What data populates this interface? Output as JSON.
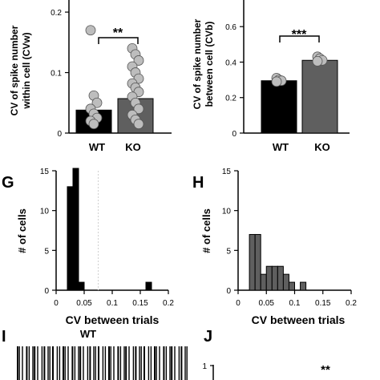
{
  "colors": {
    "wt": "#000000",
    "ko": "#5f5f5f",
    "dot": "#bdbdbd",
    "raster": "#000000"
  },
  "chart_data": [
    {
      "panel": "top-left",
      "type": "bar",
      "ylabel_lines": [
        "CV of spike number",
        "within cell (CVw)"
      ],
      "categories": [
        "WT",
        "KO"
      ],
      "values": [
        0.038,
        0.057
      ],
      "ylim": [
        0,
        0.22
      ],
      "yticks": [
        0,
        0.1,
        0.2
      ],
      "ytick_labels": [
        "0",
        "0.1",
        "0.2"
      ],
      "significance": "**",
      "points": {
        "WT": [
          0.17,
          0.062,
          0.05,
          0.04,
          0.032,
          0.025,
          0.02,
          0.015
        ],
        "KO": [
          0.14,
          0.13,
          0.12,
          0.11,
          0.1,
          0.09,
          0.082,
          0.075,
          0.068,
          0.06,
          0.05,
          0.04,
          0.03,
          0.022,
          0.015
        ]
      }
    },
    {
      "panel": "top-right",
      "type": "bar",
      "ylabel_lines": [
        "CV of spike number",
        "between cell (CVb)"
      ],
      "categories": [
        "WT",
        "KO"
      ],
      "values": [
        0.295,
        0.41
      ],
      "ylim": [
        0,
        0.75
      ],
      "yticks": [
        0,
        0.2,
        0.4,
        0.6
      ],
      "ytick_labels": [
        "0",
        "0.2",
        "0.4",
        "0.6"
      ],
      "significance": "***",
      "points": {
        "WT": [
          0.31,
          0.3,
          0.295,
          0.29
        ],
        "KO": [
          0.43,
          0.42,
          0.41,
          0.405
        ]
      }
    },
    {
      "panel": "G",
      "label": "G",
      "type": "bar",
      "subtype": "histogram",
      "xlabel": "CV between trials",
      "ylabel": "# of cells",
      "xlim": [
        0,
        0.2
      ],
      "ylim": [
        0,
        15
      ],
      "xticks": [
        0,
        0.05,
        0.1,
        0.15,
        0.2
      ],
      "xtick_labels": [
        "0",
        "0.05",
        "0.1",
        "0.15",
        "0.2"
      ],
      "yticks": [
        0,
        5,
        10,
        15
      ],
      "ytick_labels": [
        "0",
        "5",
        "10",
        "15"
      ],
      "bin_width": 0.01,
      "bins": [
        {
          "start": 0.02,
          "count": 13
        },
        {
          "start": 0.03,
          "count": 15.3
        },
        {
          "start": 0.04,
          "count": 1
        },
        {
          "start": 0.16,
          "count": 1
        }
      ],
      "dashed_at": 0.075
    },
    {
      "panel": "H",
      "label": "H",
      "type": "bar",
      "subtype": "histogram",
      "xlabel": "CV between trials",
      "ylabel": "# of cells",
      "xlim": [
        0,
        0.2
      ],
      "ylim": [
        0,
        15
      ],
      "xticks": [
        0,
        0.05,
        0.1,
        0.15,
        0.2
      ],
      "xtick_labels": [
        "0",
        "0.05",
        "0.1",
        "0.15",
        "0.2"
      ],
      "yticks": [
        0,
        5,
        10,
        15
      ],
      "ytick_labels": [
        "0",
        "5",
        "10",
        "15"
      ],
      "bin_width": 0.01,
      "bins": [
        {
          "start": 0.02,
          "count": 7
        },
        {
          "start": 0.03,
          "count": 7
        },
        {
          "start": 0.04,
          "count": 2
        },
        {
          "start": 0.05,
          "count": 3
        },
        {
          "start": 0.06,
          "count": 3
        },
        {
          "start": 0.07,
          "count": 3
        },
        {
          "start": 0.08,
          "count": 2
        },
        {
          "start": 0.09,
          "count": 1
        },
        {
          "start": 0.11,
          "count": 1
        }
      ]
    }
  ],
  "panel_i": {
    "label": "I",
    "title": "WT"
  },
  "panel_j": {
    "label": "J",
    "ytick": "1",
    "significance": "**"
  }
}
